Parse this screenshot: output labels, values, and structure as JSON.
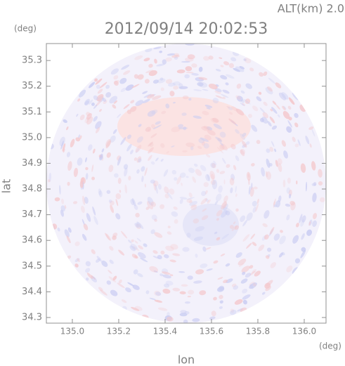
{
  "chart_data": {
    "type": "radar",
    "title": "2012/09/14 20:02:53",
    "subtitle": "ALT(km) 2.0",
    "xlabel": "lon",
    "ylabel": "lat",
    "xunit": "(deg)",
    "yunit": "(deg)",
    "xlim": [
      134.888,
      136.094
    ],
    "ylim": [
      34.278,
      35.366
    ],
    "xticks": [
      {
        "value": 135.0,
        "label": "135.0"
      },
      135.2,
      135.4,
      135.6,
      135.8,
      {
        "value": 136.0,
        "label": "136.0"
      }
    ],
    "yticks": [
      34.3,
      34.4,
      34.5,
      34.6,
      34.7,
      34.8,
      34.9,
      {
        "value": 35.0,
        "label": "35.0"
      },
      35.1,
      35.2,
      35.3
    ]
  }
}
